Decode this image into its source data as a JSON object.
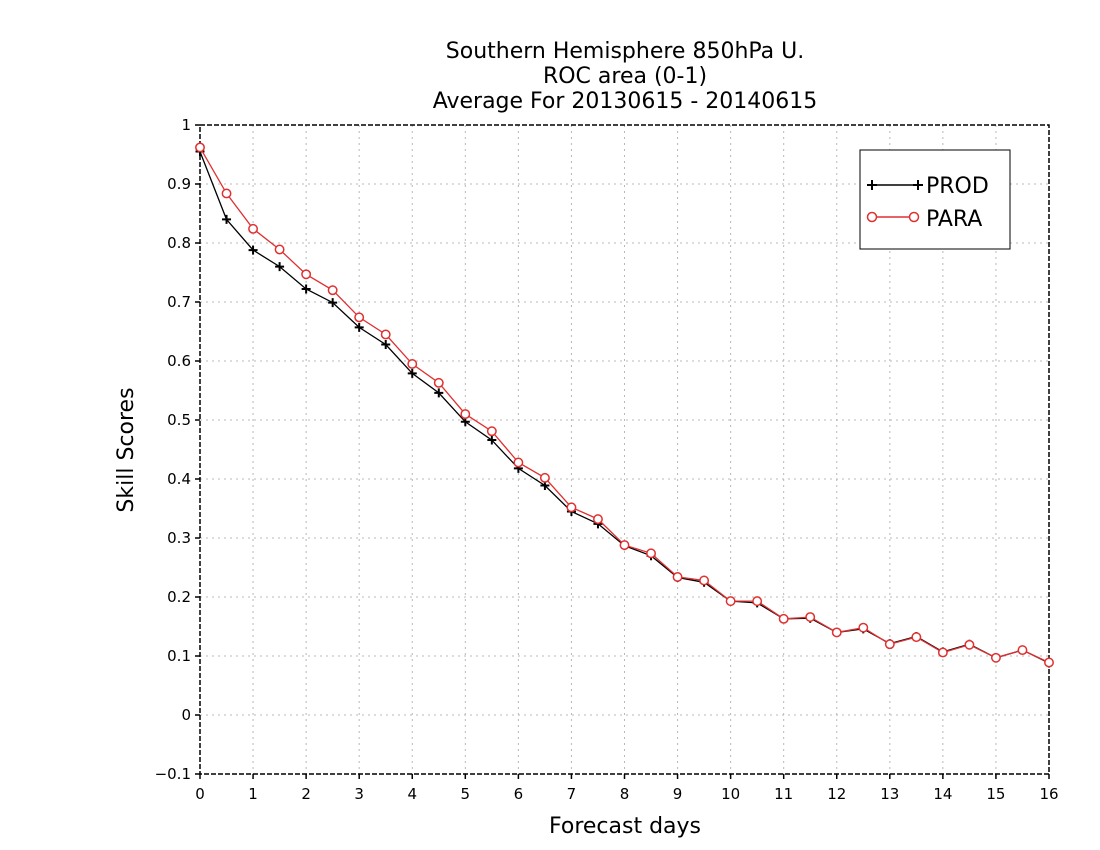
{
  "chart_data": {
    "type": "line",
    "title_lines": [
      "Southern Hemisphere 850hPa U.",
      "ROC area (0-1)",
      "Average For 20130615 - 20140615"
    ],
    "xlabel": "Forecast days",
    "ylabel": "Skill Scores",
    "xlim": [
      0,
      16
    ],
    "ylim": [
      -0.1,
      1
    ],
    "x_ticks": [
      "0",
      "1",
      "2",
      "3",
      "4",
      "5",
      "6",
      "7",
      "8",
      "9",
      "10",
      "11",
      "12",
      "13",
      "14",
      "15",
      "16"
    ],
    "y_ticks": [
      "−0.1",
      "0",
      "0.1",
      "0.2",
      "0.3",
      "0.4",
      "0.5",
      "0.6",
      "0.7",
      "0.8",
      "0.9",
      "1"
    ],
    "grid": true,
    "legend_position": "top-right",
    "x": [
      0,
      0.5,
      1,
      1.5,
      2,
      2.5,
      3,
      3.5,
      4,
      4.5,
      5,
      5.5,
      6,
      6.5,
      7,
      7.5,
      8,
      8.5,
      9,
      9.5,
      10,
      10.5,
      11,
      11.5,
      12,
      12.5,
      13,
      13.5,
      14,
      14.5,
      15,
      15.5,
      16
    ],
    "series": [
      {
        "name": "PROD",
        "color": "#000000",
        "marker": "plus",
        "values": [
          0.955,
          0.84,
          0.788,
          0.76,
          0.722,
          0.699,
          0.657,
          0.628,
          0.579,
          0.546,
          0.497,
          0.466,
          0.418,
          0.389,
          0.345,
          0.324,
          0.287,
          0.27,
          0.233,
          0.225,
          0.193,
          0.19,
          0.163,
          0.164,
          0.14,
          0.146,
          0.121,
          0.133,
          0.107,
          0.12,
          0.097,
          0.11,
          0.088
        ]
      },
      {
        "name": "PARA",
        "color": "#e03030",
        "marker": "circle",
        "values": [
          0.962,
          0.884,
          0.824,
          0.789,
          0.747,
          0.72,
          0.674,
          0.645,
          0.595,
          0.563,
          0.51,
          0.481,
          0.428,
          0.402,
          0.352,
          0.332,
          0.288,
          0.274,
          0.234,
          0.228,
          0.193,
          0.193,
          0.163,
          0.166,
          0.14,
          0.148,
          0.12,
          0.132,
          0.106,
          0.119,
          0.097,
          0.11,
          0.089
        ]
      }
    ]
  }
}
